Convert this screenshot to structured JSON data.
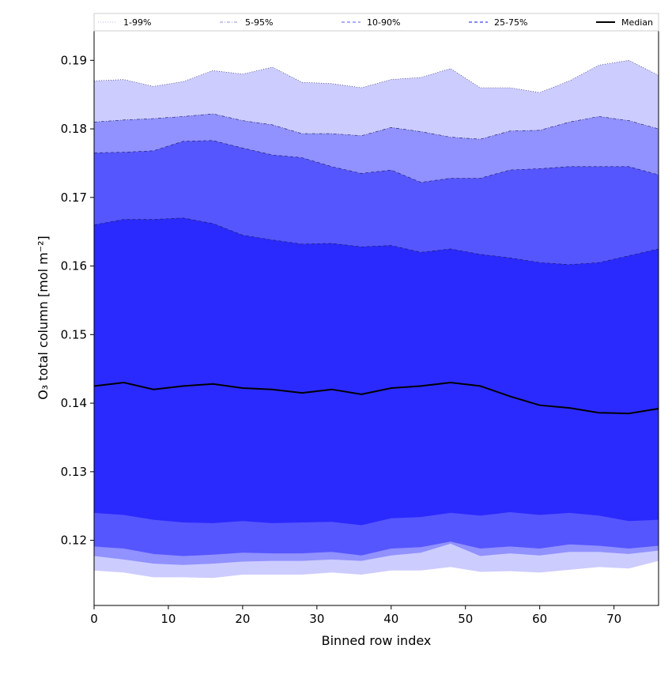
{
  "chart_data": {
    "type": "area",
    "title": "",
    "xlabel": "Binned row index",
    "ylabel": "O₃ total column [mol m⁻²]",
    "xlim": [
      0,
      76
    ],
    "ylim": [
      0.1105,
      0.1943
    ],
    "x_ticks": [
      0,
      10,
      20,
      30,
      40,
      50,
      60,
      70
    ],
    "x_tick_labels": [
      "0",
      "10",
      "20",
      "30",
      "40",
      "50",
      "60",
      "70"
    ],
    "y_ticks": [
      0.12,
      0.13,
      0.14,
      0.15,
      0.16,
      0.17,
      0.18,
      0.19
    ],
    "y_tick_labels": [
      "0.12",
      "0.13",
      "0.14",
      "0.15",
      "0.16",
      "0.17",
      "0.18",
      "0.19"
    ],
    "grid": false,
    "legend_position": "top",
    "colors": {
      "band_1_99": "#ccccff",
      "band_5_95": "#9191ff",
      "band_10_90": "#5656ff",
      "band_25_75": "#2a2aff",
      "median": "#000000"
    },
    "legend": [
      {
        "label": "1-99%",
        "style": "dotted",
        "color": "#c8c8f0"
      },
      {
        "label": "5-95%",
        "style": "dashdot",
        "color": "#a8a8e8"
      },
      {
        "label": "10-90%",
        "style": "dashed",
        "color": "#7a7aff"
      },
      {
        "label": "25-75%",
        "style": "dashed",
        "color": "#4040ff"
      },
      {
        "label": "Median",
        "style": "solid",
        "color": "#000000"
      }
    ],
    "x": [
      0,
      4,
      8,
      12,
      16,
      20,
      24,
      28,
      32,
      36,
      40,
      44,
      48,
      52,
      56,
      60,
      64,
      68,
      72,
      76
    ],
    "series": [
      {
        "name": "1-99%",
        "lower": [
          0.1156,
          0.1153,
          0.1146,
          0.1146,
          0.1145,
          0.115,
          0.115,
          0.115,
          0.1153,
          0.115,
          0.1156,
          0.1156,
          0.1161,
          0.1154,
          0.1155,
          0.1153,
          0.1157,
          0.1161,
          0.1159,
          0.117
        ],
        "upper": [
          0.187,
          0.1872,
          0.1862,
          0.1869,
          0.1885,
          0.188,
          0.189,
          0.1868,
          0.1866,
          0.186,
          0.1872,
          0.1875,
          0.1888,
          0.186,
          0.186,
          0.1853,
          0.187,
          0.1893,
          0.19,
          0.1878
        ]
      },
      {
        "name": "5-95%",
        "lower": [
          0.1177,
          0.1172,
          0.1166,
          0.1164,
          0.1166,
          0.1169,
          0.117,
          0.117,
          0.1172,
          0.117,
          0.1178,
          0.1182,
          0.1195,
          0.1177,
          0.1181,
          0.1178,
          0.1183,
          0.1183,
          0.118,
          0.1185
        ],
        "upper": [
          0.181,
          0.1813,
          0.1815,
          0.1818,
          0.1822,
          0.1812,
          0.1806,
          0.1793,
          0.1793,
          0.179,
          0.1802,
          0.1796,
          0.1788,
          0.1785,
          0.1797,
          0.1798,
          0.181,
          0.1818,
          0.1812,
          0.18
        ]
      },
      {
        "name": "10-90%",
        "lower": [
          0.1191,
          0.1188,
          0.118,
          0.1177,
          0.1179,
          0.1182,
          0.1181,
          0.1181,
          0.1183,
          0.1178,
          0.1188,
          0.119,
          0.1198,
          0.1188,
          0.1191,
          0.1188,
          0.1194,
          0.1192,
          0.1188,
          0.1192
        ],
        "upper": [
          0.1765,
          0.1766,
          0.1768,
          0.1782,
          0.1783,
          0.1772,
          0.1762,
          0.1758,
          0.1745,
          0.1735,
          0.174,
          0.1722,
          0.1728,
          0.1728,
          0.174,
          0.1742,
          0.1745,
          0.1745,
          0.1745,
          0.1733
        ]
      },
      {
        "name": "25-75%",
        "lower": [
          0.124,
          0.1237,
          0.123,
          0.1226,
          0.1225,
          0.1228,
          0.1225,
          0.1226,
          0.1227,
          0.1222,
          0.1232,
          0.1234,
          0.124,
          0.1236,
          0.1241,
          0.1237,
          0.124,
          0.1236,
          0.1228,
          0.123
        ],
        "upper": [
          0.166,
          0.1668,
          0.1668,
          0.167,
          0.1662,
          0.1645,
          0.1638,
          0.1632,
          0.1633,
          0.1628,
          0.163,
          0.162,
          0.1625,
          0.1617,
          0.1612,
          0.1605,
          0.1602,
          0.1605,
          0.1615,
          0.1625
        ]
      },
      {
        "name": "Median",
        "values": [
          0.1425,
          0.143,
          0.142,
          0.1425,
          0.1428,
          0.1422,
          0.142,
          0.1415,
          0.142,
          0.1413,
          0.1422,
          0.1425,
          0.143,
          0.1425,
          0.141,
          0.1397,
          0.1393,
          0.1386,
          0.1385,
          0.1392
        ]
      }
    ]
  }
}
